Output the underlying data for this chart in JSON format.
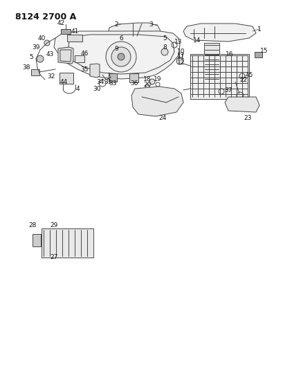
{
  "title": "8124 2700 A",
  "bg_color": "#ffffff",
  "line_color": "#444444",
  "title_fontsize": 9,
  "label_fontsize": 6.5,
  "fig_width": 4.1,
  "fig_height": 5.33,
  "dpi": 100
}
